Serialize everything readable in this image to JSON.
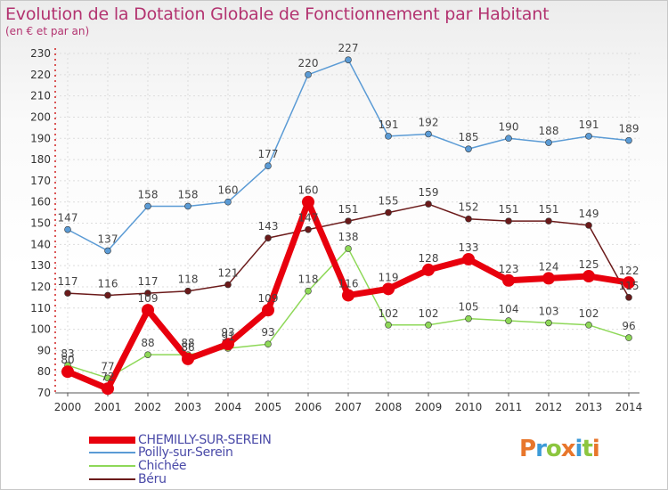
{
  "header": {
    "title": "Evolution de la Dotation Globale de Fonctionnement par Habitant",
    "subtitle": "(en € et par an)"
  },
  "logo": {
    "text": "Proxiti",
    "colors": [
      "#e8762b",
      "#3d9bd8",
      "#8cc63f",
      "#e8762b",
      "#3d9bd8",
      "#8cc63f",
      "#e8762b"
    ]
  },
  "chart_data": {
    "type": "line",
    "title": "Evolution de la Dotation Globale de Fonctionnement par Habitant",
    "subtitle": "(en € et par an)",
    "x": [
      "2000",
      "2001",
      "2002",
      "2003",
      "2004",
      "2005",
      "2006",
      "2007",
      "2008",
      "2009",
      "2010",
      "2011",
      "2012",
      "2013",
      "2014"
    ],
    "ylim": [
      70,
      230
    ],
    "yticks": [
      70,
      80,
      90,
      100,
      110,
      120,
      130,
      140,
      150,
      160,
      170,
      180,
      190,
      200,
      210,
      220,
      230
    ],
    "grid": true,
    "legend_position": "bottom-left",
    "series": [
      {
        "name": "CHEMILLY-SUR-SEREIN",
        "color": "#e8000d",
        "emphasis": true,
        "values": [
          80,
          72,
          109,
          86,
          93,
          109,
          160,
          116,
          119,
          128,
          133,
          123,
          124,
          125,
          122
        ],
        "labels": [
          "80",
          "72",
          "109",
          "86",
          "93",
          "109",
          "160",
          "116",
          "119",
          "128",
          "133",
          "123",
          "124",
          "125",
          "122"
        ]
      },
      {
        "name": "Poilly-sur-Serein",
        "color": "#5b9bd5",
        "values": [
          147,
          137,
          158,
          158,
          160,
          177,
          220,
          227,
          191,
          192,
          185,
          190,
          188,
          191,
          189
        ],
        "labels": [
          "147",
          "137",
          "158",
          "158",
          "160",
          "177",
          "220",
          "227",
          "191",
          "192",
          "185",
          "190",
          "188",
          "191",
          "189"
        ]
      },
      {
        "name": "Chichée",
        "color": "#8ed858",
        "values": [
          83,
          77,
          88,
          88,
          91,
          93,
          118,
          138,
          102,
          102,
          105,
          104,
          103,
          102,
          96
        ],
        "labels": [
          "83",
          "77",
          "88",
          "88",
          "91",
          "93",
          "118",
          "138",
          "102",
          "102",
          "105",
          "104",
          "103",
          "102",
          "96"
        ]
      },
      {
        "name": "Béru",
        "color": "#6b1a1a",
        "values": [
          117,
          116,
          117,
          118,
          121,
          143,
          147,
          151,
          155,
          159,
          152,
          151,
          151,
          149,
          115
        ],
        "labels": [
          "117",
          "116",
          "117",
          "118",
          "121",
          "143",
          "147",
          "151",
          "155",
          "159",
          "152",
          "151",
          "151",
          "149",
          "115"
        ]
      }
    ]
  }
}
